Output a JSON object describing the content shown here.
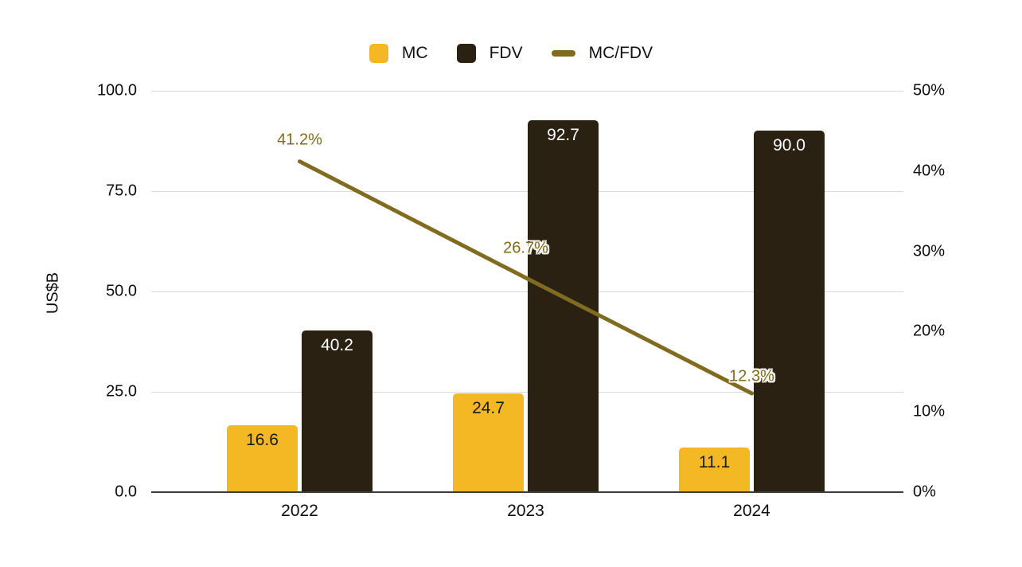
{
  "chart_data": {
    "type": "bar",
    "subtype": "combo-bar-line-dual-axis",
    "categories": [
      "2022",
      "2023",
      "2024"
    ],
    "series": [
      {
        "name": "MC",
        "kind": "bar",
        "axis": "left",
        "color": "#F4B824",
        "values": [
          16.6,
          24.7,
          11.1
        ],
        "data_labels": [
          "16.6",
          "24.7",
          "11.1"
        ],
        "label_color": "#1C1A12"
      },
      {
        "name": "FDV",
        "kind": "bar",
        "axis": "left",
        "color": "#2A2113",
        "values": [
          40.2,
          92.7,
          90.0
        ],
        "data_labels": [
          "40.2",
          "92.7",
          "90.0"
        ],
        "label_color": "#FFFFFF"
      },
      {
        "name": "MC/FDV",
        "kind": "line",
        "axis": "right",
        "color": "#806B20",
        "values": [
          41.2,
          26.7,
          12.3
        ],
        "data_labels": [
          "41.2%",
          "26.7%",
          "12.3%"
        ],
        "label_color": "#806B20"
      }
    ],
    "left_axis": {
      "title": "US$B",
      "min": 0,
      "max": 100,
      "tick_labels": [
        "100.0",
        "75.0",
        "50.0",
        "25.0",
        "0.0"
      ],
      "tick_values": [
        100,
        75,
        50,
        25,
        0
      ]
    },
    "right_axis": {
      "min": 0,
      "max": 50,
      "tick_labels": [
        "50%",
        "40%",
        "30%",
        "20%",
        "10%",
        "0%"
      ],
      "tick_values": [
        50,
        40,
        30,
        20,
        10,
        0
      ]
    },
    "legend": {
      "position": "top"
    },
    "grid": {
      "color": "#DADADA",
      "baseline_color": "#3C3C3C",
      "background": "#FFFFFF"
    }
  }
}
